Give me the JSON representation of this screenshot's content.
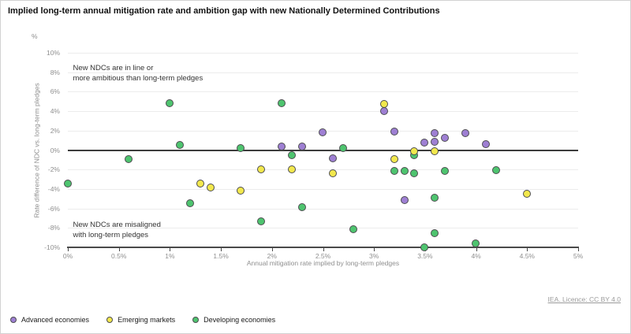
{
  "title": "Implied long-term annual mitigation rate and ambition gap with new Nationally Determined Contributions",
  "footer": {
    "license": "IEA. Licence: CC BY 4.0"
  },
  "chart_data": {
    "type": "scatter",
    "unit_label": "%",
    "xlabel": "Annual mitigation rate implied by long-term pledges",
    "ylabel": "Rate difference of NDC vs. long-term pledges",
    "xlim": [
      0,
      5
    ],
    "ylim": [
      -10,
      10
    ],
    "grid": "horizontal",
    "legend_position": "bottom-left",
    "x_ticks": [
      {
        "v": 0,
        "label": "0%"
      },
      {
        "v": 0.5,
        "label": "0.5%"
      },
      {
        "v": 1,
        "label": "1%"
      },
      {
        "v": 1.5,
        "label": "1.5%"
      },
      {
        "v": 2,
        "label": "2%"
      },
      {
        "v": 2.5,
        "label": "2.5%"
      },
      {
        "v": 3,
        "label": "3%"
      },
      {
        "v": 3.5,
        "label": "3.5%"
      },
      {
        "v": 4,
        "label": "4%"
      },
      {
        "v": 4.5,
        "label": "4.5%"
      },
      {
        "v": 5,
        "label": "5%"
      }
    ],
    "y_ticks": [
      {
        "v": 10,
        "label": "10%"
      },
      {
        "v": 8,
        "label": "8%"
      },
      {
        "v": 6,
        "label": "6%"
      },
      {
        "v": 4,
        "label": "4%"
      },
      {
        "v": 2,
        "label": "2%"
      },
      {
        "v": 0,
        "label": "0%"
      },
      {
        "v": -2,
        "label": "-2%"
      },
      {
        "v": -4,
        "label": "-4%"
      },
      {
        "v": -6,
        "label": "-6%"
      },
      {
        "v": -8,
        "label": "-8%"
      },
      {
        "v": -10,
        "label": "-10%"
      }
    ],
    "annotations": [
      {
        "x": 0.05,
        "y": 8.95,
        "text": "New NDCs are in line or\nmore ambitious than long-term pledges"
      },
      {
        "x": 0.05,
        "y": -7.2,
        "text": "New NDCs are misaligned\nwith long-term pledges"
      }
    ],
    "series": [
      {
        "name": "Advanced economies",
        "color": "#9e7fd3",
        "points": [
          [
            2.1,
            0.3
          ],
          [
            2.3,
            0.3
          ],
          [
            2.5,
            1.8
          ],
          [
            2.6,
            -0.9
          ],
          [
            3.1,
            4.0
          ],
          [
            3.2,
            1.9
          ],
          [
            3.3,
            -5.2
          ],
          [
            3.5,
            0.7
          ],
          [
            3.6,
            0.8
          ],
          [
            3.6,
            1.7
          ],
          [
            3.7,
            1.2
          ],
          [
            3.9,
            1.7
          ],
          [
            4.1,
            0.6
          ]
        ]
      },
      {
        "name": "Emerging markets",
        "color": "#f2e84d",
        "points": [
          [
            1.3,
            -3.5
          ],
          [
            1.4,
            -3.9
          ],
          [
            1.7,
            -4.2
          ],
          [
            1.9,
            -2.0
          ],
          [
            2.2,
            -2.0
          ],
          [
            2.6,
            -2.4
          ],
          [
            3.1,
            4.7
          ],
          [
            3.2,
            -1.0
          ],
          [
            3.4,
            -0.2
          ],
          [
            3.6,
            -0.2
          ],
          [
            4.5,
            -4.5
          ]
        ]
      },
      {
        "name": "Developing economies",
        "color": "#4ec46f",
        "points": [
          [
            0.0,
            -3.5
          ],
          [
            0.6,
            -1.0
          ],
          [
            1.0,
            4.8
          ],
          [
            1.1,
            0.5
          ],
          [
            1.2,
            -5.5
          ],
          [
            1.7,
            0.2
          ],
          [
            1.9,
            -7.4
          ],
          [
            2.1,
            4.8
          ],
          [
            2.2,
            -0.6
          ],
          [
            2.3,
            -5.9
          ],
          [
            2.7,
            0.2
          ],
          [
            2.8,
            -8.2
          ],
          [
            3.2,
            -2.2
          ],
          [
            3.3,
            -2.2
          ],
          [
            3.4,
            -0.6
          ],
          [
            3.4,
            -2.4
          ],
          [
            3.5,
            -10.0
          ],
          [
            3.6,
            -4.9
          ],
          [
            3.6,
            -8.6
          ],
          [
            3.7,
            -2.2
          ],
          [
            4.0,
            -9.6
          ],
          [
            4.2,
            -2.1
          ]
        ]
      }
    ]
  }
}
